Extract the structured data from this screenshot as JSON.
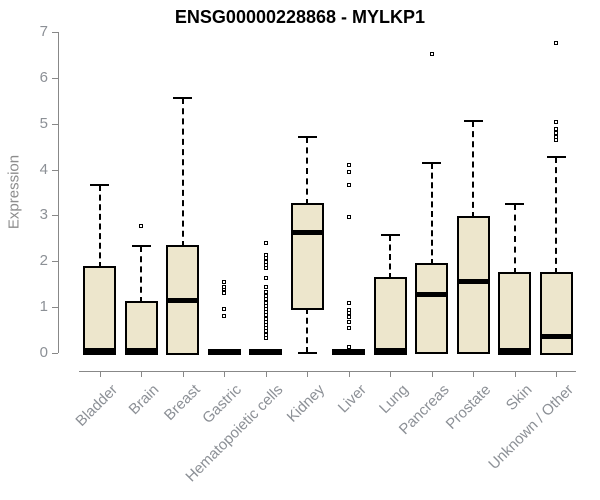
{
  "chart_data": {
    "type": "boxplot",
    "title": "ENSG00000228868 - MYLKP1",
    "ylabel": "Expression",
    "xlabel": "",
    "ylim": [
      0,
      7
    ],
    "yticks": [
      0,
      1,
      2,
      3,
      4,
      5,
      6,
      7
    ],
    "grid": false,
    "legend": false,
    "categories": [
      "Bladder",
      "Brain",
      "Breast",
      "Gastric",
      "Hematopoietic cells",
      "Kidney",
      "Liver",
      "Lung",
      "Pancreas",
      "Prostate",
      "Skin",
      "Unknown / Other"
    ],
    "boxes": [
      {
        "category": "Bladder",
        "whisker_low": 0,
        "q1": 0,
        "median": 0.05,
        "q3": 1.85,
        "whisker_high": 3.67,
        "outliers": []
      },
      {
        "category": "Brain",
        "whisker_low": 0,
        "q1": 0,
        "median": 0.05,
        "q3": 1.08,
        "whisker_high": 2.33,
        "outliers": [
          2.78
        ]
      },
      {
        "category": "Breast",
        "whisker_low": 0,
        "q1": 0,
        "median": 1.15,
        "q3": 2.32,
        "whisker_high": 5.55,
        "outliers": []
      },
      {
        "category": "Gastric",
        "whisker_low": 0,
        "q1": 0,
        "median": 0.03,
        "q3": 0.05,
        "whisker_high": 0.05,
        "outliers": [
          0.8,
          0.95,
          1.3,
          1.4,
          1.45,
          1.55
        ]
      },
      {
        "category": "Hematopoietic cells",
        "whisker_low": 0,
        "q1": 0,
        "median": 0.03,
        "q3": 0.05,
        "whisker_high": 0.05,
        "outliers": [
          0.33,
          0.4,
          0.47,
          0.54,
          0.61,
          0.68,
          0.75,
          0.82,
          0.89,
          0.96,
          1.03,
          1.1,
          1.17,
          1.24,
          1.33,
          1.44,
          1.63,
          1.85,
          1.92,
          1.98,
          2.07,
          2.14,
          2.4
        ]
      },
      {
        "category": "Kidney",
        "whisker_low": 0,
        "q1": 0.98,
        "median": 2.63,
        "q3": 3.22,
        "whisker_high": 4.7,
        "outliers": []
      },
      {
        "category": "Liver",
        "whisker_low": 0,
        "q1": 0,
        "median": 0.03,
        "q3": 0.05,
        "whisker_high": 0.05,
        "outliers": [
          0.13,
          0.55,
          0.68,
          0.78,
          0.88,
          0.94,
          1.09,
          2.97,
          3.66,
          3.95,
          4.1
        ]
      },
      {
        "category": "Lung",
        "whisker_low": 0,
        "q1": 0,
        "median": 0.05,
        "q3": 1.62,
        "whisker_high": 2.58,
        "outliers": []
      },
      {
        "category": "Pancreas",
        "whisker_low": 0,
        "q1": 0.02,
        "median": 1.28,
        "q3": 1.92,
        "whisker_high": 4.15,
        "outliers": [
          6.52
        ]
      },
      {
        "category": "Prostate",
        "whisker_low": 0,
        "q1": 0.02,
        "median": 1.55,
        "q3": 2.95,
        "whisker_high": 5.05,
        "outliers": []
      },
      {
        "category": "Skin",
        "whisker_low": 0,
        "q1": 0,
        "median": 0.05,
        "q3": 1.72,
        "whisker_high": 3.24,
        "outliers": []
      },
      {
        "category": "Unknown / Other",
        "whisker_low": 0,
        "q1": 0,
        "median": 0.35,
        "q3": 1.72,
        "whisker_high": 4.27,
        "outliers": [
          4.65,
          4.72,
          4.8,
          4.88,
          5.04,
          6.76
        ]
      }
    ],
    "colors": {
      "box_fill": "#EDE6CC",
      "box_border": "#000000",
      "median": "#000000",
      "whisker": "#000000",
      "outlier_border": "#000000",
      "outlier_fill": "#FFFFFF",
      "axis": "#888888",
      "tick_label": "#8C9096",
      "axis_label": "#8C8C8C",
      "title": "#000000",
      "background": "#FFFFFF"
    }
  }
}
